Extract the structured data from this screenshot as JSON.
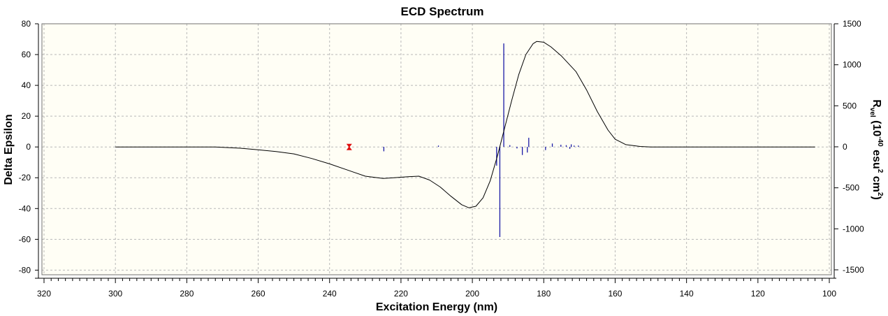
{
  "chart_data": {
    "type": "line",
    "title": "ECD Spectrum",
    "xlabel": "Excitation Energy (nm)",
    "ylabel": "Delta Epsilon",
    "y2label": {
      "text": "R",
      "sub": "vel",
      "rest_a": " (10",
      "sup_a": "-40",
      "rest_b": " esu",
      "sup_b": "2",
      "rest_c": " cm",
      "sup_c": "2",
      "close": ")"
    },
    "x_reversed": true,
    "xlim": [
      320,
      100
    ],
    "ylim": [
      -83,
      80
    ],
    "y2lim": [
      -1560,
      1500
    ],
    "x_ticks": [
      320,
      300,
      280,
      260,
      240,
      220,
      200,
      180,
      160,
      140,
      120,
      100
    ],
    "y_ticks": [
      80,
      60,
      40,
      20,
      0,
      -20,
      -40,
      -60,
      -80
    ],
    "y2_ticks": [
      1500,
      1000,
      500,
      0,
      -500,
      -1000,
      -1500
    ],
    "x_minor_step": 2,
    "grid": true,
    "colors": {
      "background": "#fffef5",
      "curve": "#000000",
      "sticks": "#1a1aa6",
      "marker": "#e01010",
      "grid": "#b8b8b8"
    },
    "curve": [
      [
        300,
        0
      ],
      [
        290,
        0
      ],
      [
        280,
        0
      ],
      [
        272,
        0
      ],
      [
        265,
        -0.8
      ],
      [
        260,
        -1.8
      ],
      [
        255,
        -3
      ],
      [
        250,
        -4.5
      ],
      [
        245,
        -7.5
      ],
      [
        240,
        -11
      ],
      [
        235,
        -15
      ],
      [
        230,
        -19
      ],
      [
        225,
        -20.5
      ],
      [
        222,
        -20
      ],
      [
        218,
        -19.3
      ],
      [
        215,
        -19
      ],
      [
        212,
        -21.5
      ],
      [
        209,
        -26
      ],
      [
        206,
        -32
      ],
      [
        203,
        -37.5
      ],
      [
        201,
        -39.5
      ],
      [
        199,
        -38.5
      ],
      [
        197,
        -33
      ],
      [
        195,
        -22
      ],
      [
        193,
        -6
      ],
      [
        191,
        12
      ],
      [
        189,
        30
      ],
      [
        187,
        47
      ],
      [
        185,
        60
      ],
      [
        183,
        67
      ],
      [
        182,
        68.5
      ],
      [
        180,
        68
      ],
      [
        178,
        65
      ],
      [
        175,
        59
      ],
      [
        171,
        49
      ],
      [
        168,
        37
      ],
      [
        165,
        23
      ],
      [
        162,
        11
      ],
      [
        160,
        5
      ],
      [
        157,
        1.5
      ],
      [
        153,
        0.3
      ],
      [
        150,
        0
      ],
      [
        140,
        0
      ],
      [
        130,
        0
      ],
      [
        120,
        0
      ],
      [
        110,
        0
      ],
      [
        104,
        0
      ]
    ],
    "sticks": [
      [
        234.5,
        15
      ],
      [
        224.8,
        -55
      ],
      [
        209.5,
        15
      ],
      [
        193.2,
        -230
      ],
      [
        192.3,
        -1100
      ],
      [
        191.2,
        1260
      ],
      [
        189.5,
        20
      ],
      [
        187.5,
        -20
      ],
      [
        186,
        -100
      ],
      [
        184.6,
        -70
      ],
      [
        184.2,
        110
      ],
      [
        179.5,
        -40
      ],
      [
        177.6,
        40
      ],
      [
        175.2,
        25
      ],
      [
        173.7,
        20
      ],
      [
        172.7,
        -25
      ],
      [
        172.3,
        30
      ],
      [
        171.5,
        15
      ],
      [
        170.3,
        15
      ]
    ],
    "marker": {
      "x": 234.5,
      "y": 0
    }
  }
}
